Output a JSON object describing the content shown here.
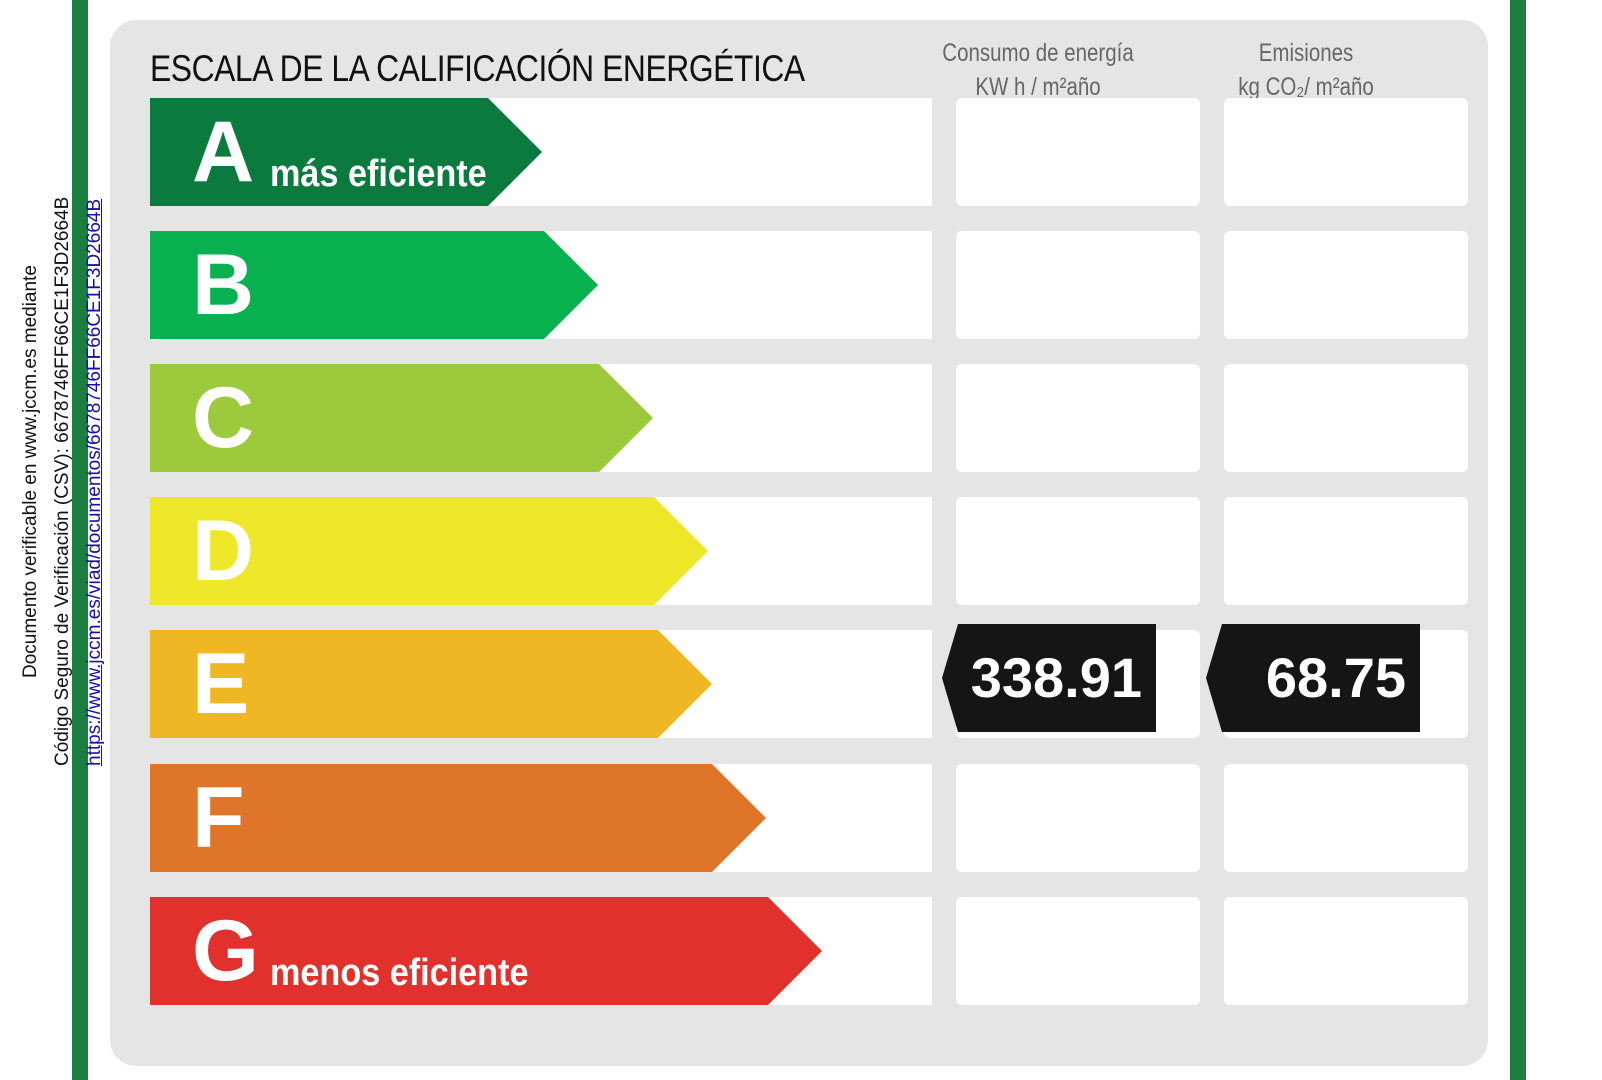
{
  "sidebar": {
    "line1": "Documento verificable en www.jccm.es mediante",
    "line2": "Código Seguro de Verificación (CSV): 6678746FF66CE1F3D2664B",
    "link": "https://www.jccm.es/viad/documentos/6678746FF66CE1F3D2664B"
  },
  "scale": {
    "title": "ESCALA DE LA CALIFICACIÓN ENERGÉTICA",
    "col1": {
      "line1": "Consumo de energía",
      "line2": "KW h / m²año"
    },
    "col2": {
      "line1": "Emisiones",
      "line2": "kg CO₂/ m²año"
    },
    "classes": [
      {
        "letter": "A",
        "label": "más eficiente",
        "color": "#0b7a3e"
      },
      {
        "letter": "B",
        "label": "",
        "color": "#08b050"
      },
      {
        "letter": "C",
        "label": "",
        "color": "#9dca3c"
      },
      {
        "letter": "D",
        "label": "",
        "color": "#eee72a"
      },
      {
        "letter": "E",
        "label": "",
        "color": "#efb723"
      },
      {
        "letter": "F",
        "label": "",
        "color": "#df7529"
      },
      {
        "letter": "G",
        "label": "menos eficiente",
        "color": "#e1312c"
      }
    ],
    "rating": {
      "class": "E",
      "energy_consumption": "338.91",
      "emissions": "68.75"
    }
  },
  "colors": {
    "border_green": "#1b7d3e",
    "panel_gray": "#e5e5e5",
    "tag_black": "#151515"
  }
}
